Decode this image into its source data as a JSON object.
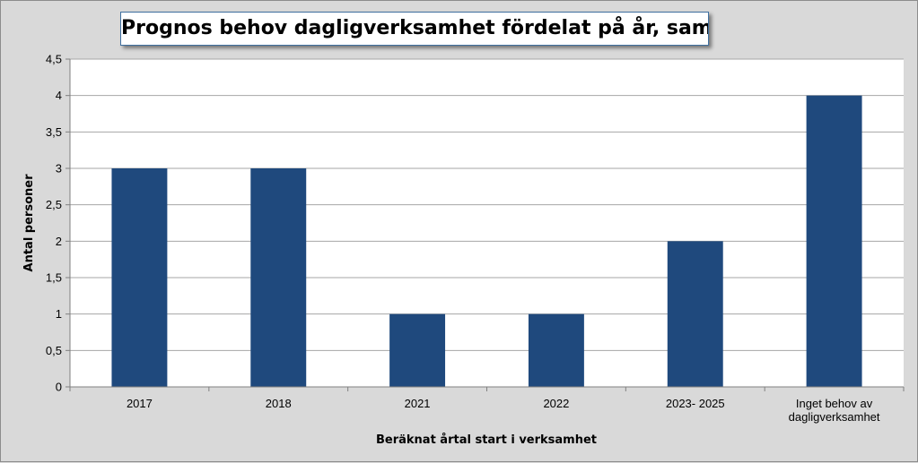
{
  "chart_data": {
    "type": "bar",
    "title": "Prognos behov dagligverksamhet fördelat på år, samtliga",
    "categories": [
      "2017",
      "2018",
      "2021",
      "2022",
      "2023- 2025",
      "Inget behov av dagligverksamhet"
    ],
    "category_lines": [
      [
        "2017"
      ],
      [
        "2018"
      ],
      [
        "2021"
      ],
      [
        "2022"
      ],
      [
        "2023- 2025"
      ],
      [
        "Inget behov av",
        "dagligverksamhet"
      ]
    ],
    "values": [
      3,
      3,
      1,
      1,
      2,
      4
    ],
    "xlabel": "Beräknat årtal start i verksamhet",
    "ylabel": "Antal personer",
    "ylim": [
      0,
      4.5
    ],
    "yticks": [
      0,
      0.5,
      1,
      1.5,
      2,
      2.5,
      3,
      3.5,
      4,
      4.5
    ],
    "ytick_labels": [
      "0",
      "0,5",
      "1",
      "1,5",
      "2",
      "2,5",
      "3",
      "3,5",
      "4",
      "4,5"
    ],
    "grid": true,
    "legend": "none",
    "bar_color": "#1f497d",
    "plot_background": "#ffffff",
    "chart_background": "#d9d9d9",
    "gridline_color": "#a6a6a6"
  }
}
